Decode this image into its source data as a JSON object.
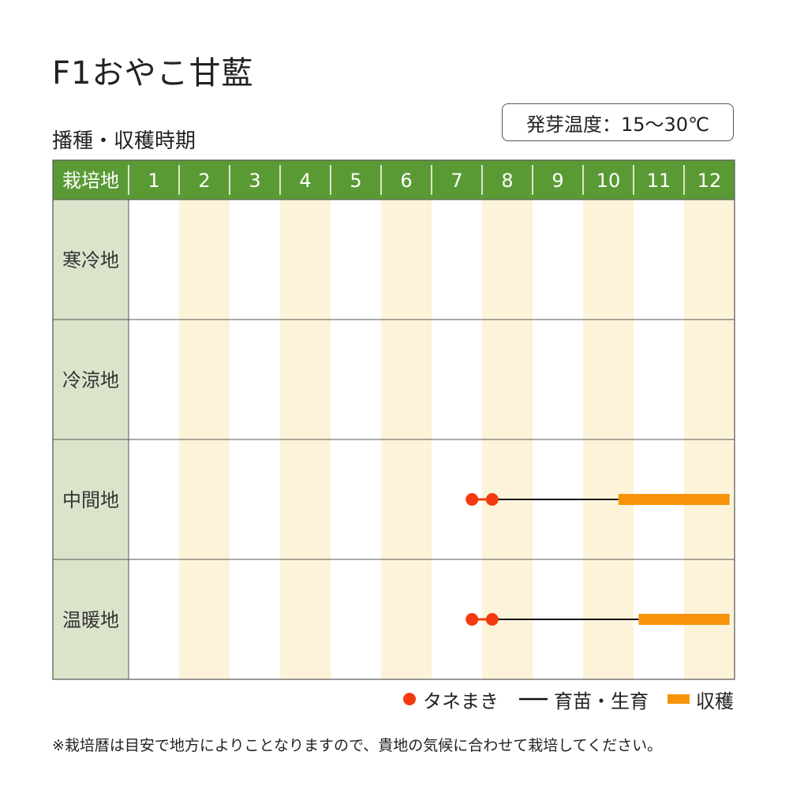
{
  "title": "F1おやこ甘藍",
  "subtitle": "播種・収穫時期",
  "germination": "発芽温度：15〜30℃",
  "note": "※栽培暦は目安で地方によりことなりますので、貴地の気候に合わせて栽培してください。",
  "colors": {
    "header": "#5a9a35",
    "row_label_bg": "#dbe3cb",
    "alt_column": "#fdf3d9",
    "seeding": "#f23b0f",
    "growing": "#111111",
    "harvest": "#f7930a"
  },
  "legend": {
    "seeding": "タネまき",
    "growing": "育苗・生育",
    "harvest": "収穫"
  },
  "chart_data": {
    "type": "gantt",
    "header_label": "栽培地",
    "months": [
      "1",
      "2",
      "3",
      "4",
      "5",
      "6",
      "7",
      "8",
      "9",
      "10",
      "11",
      "12"
    ],
    "regions": [
      {
        "name": "寒冷地",
        "seeding": [],
        "growing": null,
        "harvest": null
      },
      {
        "name": "冷涼地",
        "seeding": [],
        "growing": null,
        "harvest": null
      },
      {
        "name": "中間地",
        "seeding": [
          7.8,
          8.2
        ],
        "growing": [
          8.2,
          10.7
        ],
        "harvest": [
          10.7,
          12.9
        ]
      },
      {
        "name": "温暖地",
        "seeding": [
          7.8,
          8.2
        ],
        "growing": [
          8.2,
          11.1
        ],
        "harvest": [
          11.1,
          12.9
        ]
      }
    ]
  }
}
